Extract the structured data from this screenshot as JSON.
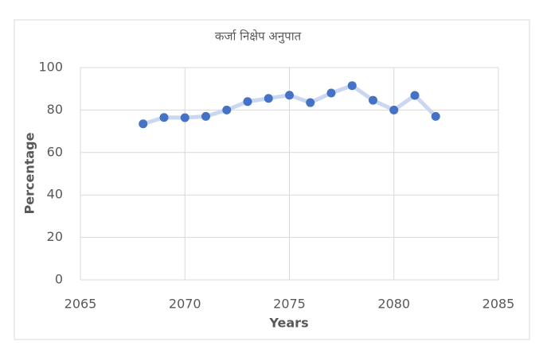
{
  "chart_data": {
    "type": "scatter",
    "title": "कर्जा निक्षेप अनुपात",
    "x_label": "Years",
    "y_label": "Percentage",
    "x": [
      2068,
      2069,
      2070,
      2071,
      2072,
      2073,
      2074,
      2075,
      2076,
      2077,
      2078,
      2079,
      2080,
      2081,
      2082
    ],
    "values": [
      73.5,
      76.5,
      76.4,
      77,
      80,
      84,
      85.5,
      87,
      83.5,
      88,
      91.5,
      84.6,
      80,
      86.9,
      77
    ],
    "color": "#4472c4",
    "line_color": "#c9d8f0",
    "xlim": [
      2065,
      2085
    ],
    "xticks": [
      2065,
      2070,
      2075,
      2080,
      2085
    ],
    "ylim": [
      0,
      100
    ],
    "yticks": [
      0,
      20,
      40,
      60,
      80,
      100
    ],
    "grid": true
  }
}
